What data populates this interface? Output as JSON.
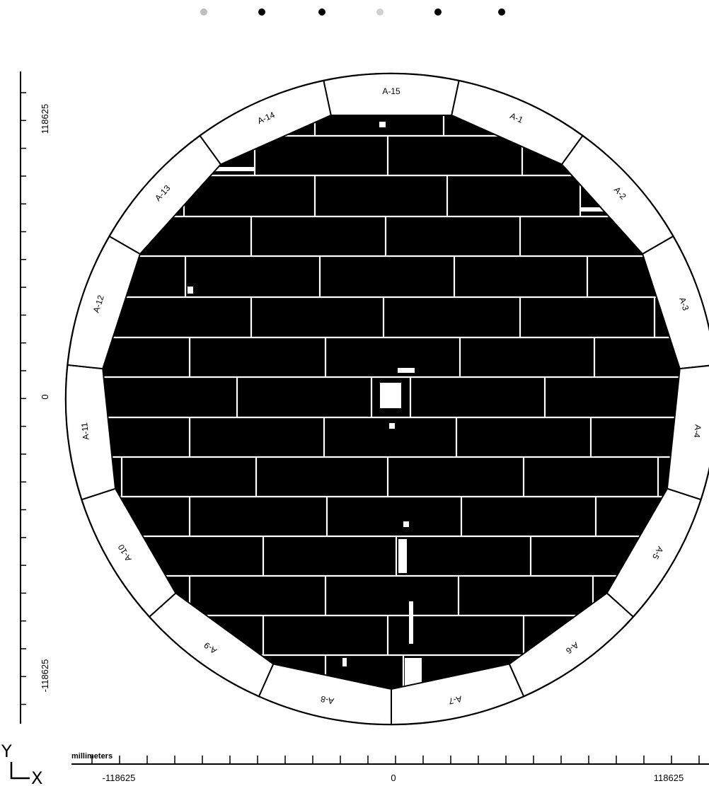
{
  "top_dots": [
    {
      "color": "#bdbdbd",
      "icon": "faint-dot-icon"
    },
    {
      "color": "#000000",
      "icon": "dot-icon"
    },
    {
      "color": "#000000",
      "icon": "dot-icon"
    },
    {
      "color": "#d0d0d0",
      "icon": "faint-dot-icon"
    },
    {
      "color": "#000000",
      "icon": "dot-icon"
    },
    {
      "color": "#000000",
      "icon": "dot-icon"
    }
  ],
  "wafer": {
    "segments": [
      "A-15",
      "A-1",
      "A-2",
      "A-3",
      "A-4",
      "A-5",
      "A-6",
      "A-7",
      "A-8",
      "A-9",
      "A-10",
      "A-11",
      "A-12",
      "A-13",
      "A-14"
    ],
    "fill_color": "#000000",
    "gap_color": "#ffffff"
  },
  "y_axis": {
    "letter": "Y",
    "tick_labels": [
      "118625",
      "0",
      "-118625"
    ]
  },
  "x_axis": {
    "letter": "X",
    "units": "millimeters",
    "tick_labels": [
      "-118625",
      "0",
      "118625"
    ]
  }
}
